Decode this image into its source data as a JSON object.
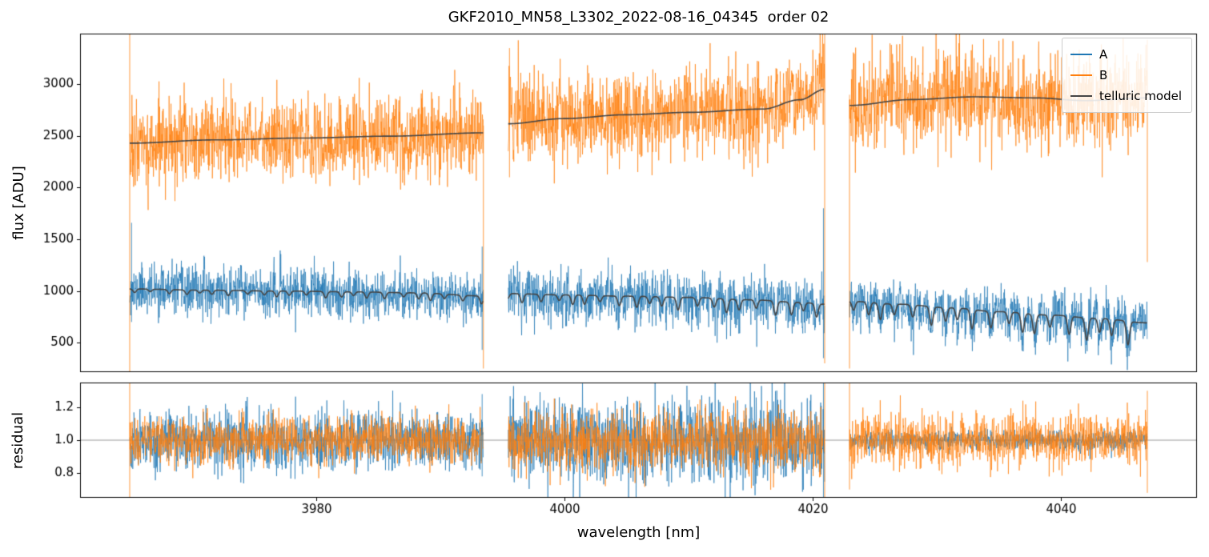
{
  "chart_data": {
    "type": "line",
    "title": "GKF2010_MN58_L3302_2022-08-16_04345  order 02",
    "xlabel": "wavelength [nm]",
    "xlim": [
      3961,
      4051
    ],
    "xticks": [
      3980,
      4000,
      4020,
      4040
    ],
    "segments_nm": [
      [
        3965,
        3993.5
      ],
      [
        3995.5,
        4021
      ],
      [
        4023,
        4047
      ]
    ],
    "panels": {
      "flux": {
        "ylabel": "flux [ADU]",
        "ylim": [
          215,
          3490
        ],
        "yticks": [
          500,
          1000,
          1500,
          2000,
          2500,
          3000
        ]
      },
      "residual": {
        "ylabel": "residual",
        "ylim": [
          0.65,
          1.35
        ],
        "yticks": [
          0.8,
          1.0,
          1.2
        ],
        "baseline": 1.0
      }
    },
    "series": [
      {
        "name": "A",
        "color": "#1f77b4",
        "role": "data-beam-A",
        "flux_noise_sigma": [
          115,
          125,
          115
        ],
        "residual_sigma": [
          0.09,
          0.13,
          0.03
        ]
      },
      {
        "name": "B",
        "color": "#ff7f0e",
        "role": "data-beam-B",
        "flux_noise_sigma": [
          200,
          210,
          220
        ],
        "residual_sigma": [
          0.07,
          0.1,
          0.08
        ]
      },
      {
        "name": "telluric model",
        "color": "#454545",
        "role": "model"
      }
    ],
    "telluric_model": {
      "upper_continuum_adu": [
        [
          3965,
          2430
        ],
        [
          3972,
          2462
        ],
        [
          3979,
          2480
        ],
        [
          3986,
          2498
        ],
        [
          3993.5,
          2530
        ],
        [
          3995.5,
          2618
        ],
        [
          4000,
          2668
        ],
        [
          4005,
          2705
        ],
        [
          4010,
          2728
        ],
        [
          4016,
          2760
        ],
        [
          4019,
          2850
        ],
        [
          4021,
          2950
        ],
        [
          4023,
          2795
        ],
        [
          4028,
          2852
        ],
        [
          4033,
          2878
        ],
        [
          4038,
          2868
        ],
        [
          4042,
          2842
        ],
        [
          4047,
          2868
        ]
      ],
      "lower_continuum_adu": [
        [
          3965,
          1020
        ],
        [
          3971,
          1008
        ],
        [
          3977,
          1000
        ],
        [
          3983,
          992
        ],
        [
          3988,
          982
        ],
        [
          3993.5,
          952
        ],
        [
          3995.5,
          975
        ],
        [
          4000,
          962
        ],
        [
          4005,
          950
        ],
        [
          4010,
          938
        ],
        [
          4015,
          915
        ],
        [
          4019,
          890
        ],
        [
          4021,
          872
        ],
        [
          4023,
          900
        ],
        [
          4027,
          872
        ],
        [
          4031,
          838
        ],
        [
          4035,
          800
        ],
        [
          4039,
          768
        ],
        [
          4043,
          735
        ],
        [
          4047,
          692
        ]
      ],
      "absorption_dips": {
        "start_nm": 3965.4,
        "mean_spacing_nm": 1.25,
        "sigma_nm": 0.13,
        "depth_by_segment": [
          0.08,
          0.17,
          0.33
        ]
      }
    },
    "edge_spikes": [
      {
        "panel": "flux",
        "series": "B",
        "x": 3965,
        "y0": 215,
        "y1": 3490
      },
      {
        "panel": "flux",
        "series": "A",
        "x": 3965.15,
        "y0": 700,
        "y1": 1660
      },
      {
        "panel": "flux",
        "series": "A",
        "x": 3993.4,
        "y0": 430,
        "y1": 1430
      },
      {
        "panel": "flux",
        "series": "B",
        "x": 3993.5,
        "y0": 250,
        "y1": 2600
      },
      {
        "panel": "flux",
        "series": "B",
        "x": 3995.6,
        "y0": 2100,
        "y1": 3350
      },
      {
        "panel": "flux",
        "series": "A",
        "x": 4020.9,
        "y0": 350,
        "y1": 1800
      },
      {
        "panel": "flux",
        "series": "B",
        "x": 4021,
        "y0": 300,
        "y1": 3490
      },
      {
        "panel": "flux",
        "series": "B",
        "x": 4023,
        "y0": 250,
        "y1": 2850
      },
      {
        "panel": "flux",
        "series": "B",
        "x": 4047,
        "y0": 1280,
        "y1": 3430
      },
      {
        "panel": "residual",
        "series": "B",
        "x": 3965,
        "y0": 0.65,
        "y1": 1.35
      },
      {
        "panel": "residual",
        "series": "A",
        "x": 3993.4,
        "y0": 0.78,
        "y1": 1.28
      },
      {
        "panel": "residual",
        "series": "A",
        "x": 4020.9,
        "y0": 0.65,
        "y1": 1.35
      },
      {
        "panel": "residual",
        "series": "B",
        "x": 4021,
        "y0": 0.65,
        "y1": 1.35
      },
      {
        "panel": "residual",
        "series": "B",
        "x": 4023,
        "y0": 0.7,
        "y1": 1.35
      },
      {
        "panel": "residual",
        "series": "B",
        "x": 4047,
        "y0": 0.68,
        "y1": 1.3
      }
    ],
    "legend": {
      "entries": [
        "A",
        "B",
        "telluric model"
      ],
      "position": "upper right"
    },
    "style": {
      "background": "#ffffff",
      "noise_alpha": 0.85,
      "noise_line_width": 0.8,
      "model_line_width": 1.6,
      "baseline_color": "#999999",
      "sample_step_nm": 0.0225
    },
    "seed": 11
  }
}
